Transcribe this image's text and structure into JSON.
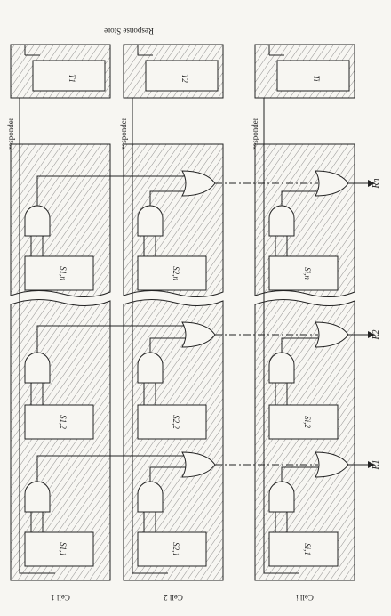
{
  "diagram": {
    "response_store_label": "Response Store",
    "responder_label": "responder",
    "cells": [
      {
        "label": "Cell 1",
        "responder_register": "T1",
        "bits": [
          "S1,1",
          "S1,2",
          "S1,n"
        ]
      },
      {
        "label": "Cell 2",
        "responder_register": "T2",
        "bits": [
          "S2,1",
          "S2,2",
          "S2,n"
        ]
      },
      {
        "label": "Cell i",
        "responder_register": "Ti",
        "bits": [
          "Si,1",
          "Si,2",
          "Si,n"
        ]
      }
    ],
    "outputs": [
      "R1",
      "R2",
      "Rn"
    ]
  },
  "colors": {
    "ink": "#222222",
    "paper": "#f7f6f2",
    "hatch": "#555555"
  }
}
